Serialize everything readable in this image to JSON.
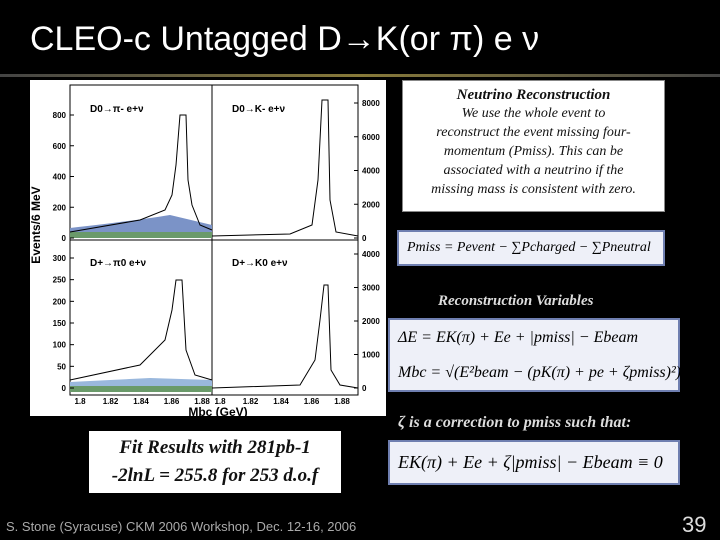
{
  "title": "CLEO-c Untagged D→K(or π) e ν",
  "figure": {
    "y_axis_label": "Events/6 MeV",
    "x_axis_label": "Mbc (GeV)",
    "panel_labels": [
      "D0→π- e+ν",
      "D0→K- e+ν",
      "D+→π0 e+ν",
      "D+→K0 e+ν"
    ],
    "top_left_yticks": [
      800,
      600,
      400,
      200,
      0
    ],
    "bottom_left_yticks": [
      300,
      250,
      200,
      150,
      100,
      50,
      0
    ],
    "top_right_yticks": [
      8000,
      6000,
      4000,
      2000,
      0
    ],
    "bottom_right_yticks": [
      4000,
      3000,
      2000,
      1000,
      0
    ],
    "xticks": [
      "1.8",
      "1.82",
      "1.84",
      "1.86",
      "1.88"
    ]
  },
  "fit_results": [
    "Fit Results with 281pb-1",
    "-2lnL = 255.8 for 253 d.o.f"
  ],
  "neutrino_box": {
    "heading": "Neutrino Reconstruction",
    "lines": [
      "We use the whole event to",
      "reconstruct the event missing four-",
      "momentum (Pmiss). This can be",
      "associated with a neutrino if the",
      "missing mass is consistent with zero."
    ]
  },
  "pmiss_formula": "Pmiss = Pevent − ∑Pcharged − ∑Pneutral",
  "variables_heading": "Reconstruction Variables",
  "variable_formulas": [
    "ΔE = EK(π) + Ee + |pmiss| − Ebeam",
    "Mbc = √(E²beam − (pK(π) + pe + ζpmiss)²)"
  ],
  "zeta_note": "ζ is a correction to pmiss such that:",
  "zeta_formula": "EK(π) + Ee + ζ|pmiss| − Ebeam ≡ 0",
  "footer": "S. Stone (Syracuse) CKM 2006 Workshop, Dec. 12-16, 2006",
  "page_number": "39"
}
